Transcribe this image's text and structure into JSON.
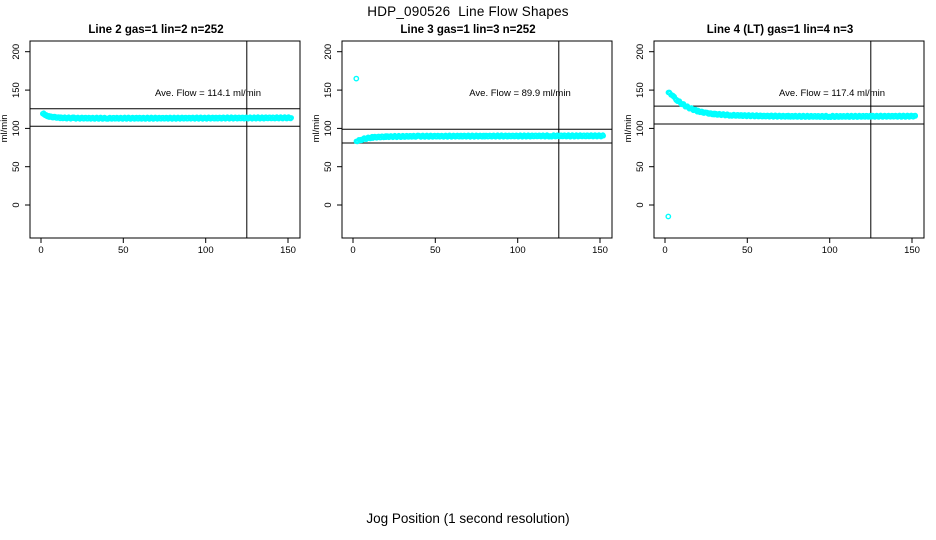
{
  "page": {
    "title": "HDP_090526  Line Flow Shapes",
    "xlabel": "Jog Position (1 second resolution)"
  },
  "chart_data": [
    {
      "type": "scatter",
      "title": "Line 2 gas=1 lin=2 n=252",
      "n": 252,
      "annotation": "Ave. Flow =  114.1  ml/min",
      "ave_flow": 114.1,
      "ylabel": "ml/min",
      "x_ticks": [
        0,
        50,
        100,
        150
      ],
      "y_ticks": [
        0,
        50,
        100,
        150,
        200
      ],
      "x_range": [
        -6.7,
        157.3
      ],
      "y_range": [
        -43,
        214
      ],
      "hlines": [
        125.5,
        102.7
      ],
      "vline": 125,
      "point_color": "#00FFFF",
      "profile": [
        [
          1,
          120
        ],
        [
          2,
          118.5
        ],
        [
          3,
          117
        ],
        [
          5,
          115.5
        ],
        [
          8,
          114.5
        ],
        [
          12,
          113.8
        ],
        [
          20,
          113.4
        ],
        [
          40,
          113.2
        ],
        [
          70,
          113.3
        ],
        [
          100,
          113.4
        ],
        [
          130,
          113.6
        ],
        [
          152,
          113.8
        ]
      ],
      "outliers": []
    },
    {
      "type": "scatter",
      "title": "Line 3 gas=1 lin=3 n=252",
      "n": 252,
      "annotation": "Ave. Flow =  89.9  ml/min",
      "ave_flow": 89.9,
      "ylabel": "ml/min",
      "x_ticks": [
        0,
        50,
        100,
        150
      ],
      "y_ticks": [
        0,
        50,
        100,
        150,
        200
      ],
      "x_range": [
        -6.7,
        157.3
      ],
      "y_range": [
        -43,
        214
      ],
      "hlines": [
        98.9,
        80.9
      ],
      "vline": 125,
      "point_color": "#00FFFF",
      "profile": [
        [
          2,
          82
        ],
        [
          3,
          83.5
        ],
        [
          5,
          85.5
        ],
        [
          8,
          87
        ],
        [
          12,
          88.3
        ],
        [
          20,
          89.2
        ],
        [
          40,
          89.8
        ],
        [
          80,
          90
        ],
        [
          120,
          90.2
        ],
        [
          152,
          90.3
        ]
      ],
      "outliers": [
        [
          2,
          165
        ]
      ]
    },
    {
      "type": "scatter",
      "title": "Line 4 (LT) gas=1 lin=4 n=3",
      "n": 3,
      "annotation": "Ave. Flow =  117.4  ml/min",
      "ave_flow": 117.4,
      "ylabel": "ml/min",
      "x_ticks": [
        0,
        50,
        100,
        150
      ],
      "y_ticks": [
        0,
        50,
        100,
        150,
        200
      ],
      "x_range": [
        -6.7,
        157.3
      ],
      "y_range": [
        -43,
        214
      ],
      "hlines": [
        129.1,
        105.7
      ],
      "vline": 125,
      "point_color": "#00FFFF",
      "profile": [
        [
          2,
          148
        ],
        [
          3,
          146
        ],
        [
          5,
          141.5
        ],
        [
          7,
          137.5
        ],
        [
          10,
          132.5
        ],
        [
          13,
          128.5
        ],
        [
          16,
          125.5
        ],
        [
          20,
          122.5
        ],
        [
          25,
          120
        ],
        [
          30,
          118.6
        ],
        [
          40,
          117.2
        ],
        [
          55,
          116.3
        ],
        [
          75,
          115.8
        ],
        [
          100,
          115.6
        ],
        [
          125,
          115.8
        ],
        [
          152,
          116
        ]
      ],
      "outliers": [
        [
          2,
          -15
        ]
      ]
    }
  ]
}
